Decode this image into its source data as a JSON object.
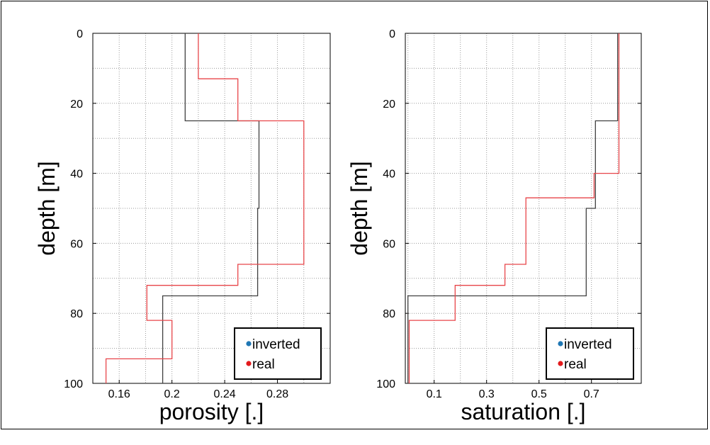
{
  "chart_data": [
    {
      "type": "line",
      "xlabel": "porosity [.]",
      "ylabel": "depth [m]",
      "xlim": [
        0.14,
        0.32
      ],
      "ylim": [
        0,
        100
      ],
      "y_inverted": true,
      "xticks": [
        0.16,
        0.2,
        0.24,
        0.28
      ],
      "xtick_labels": [
        "0.16",
        "0.2",
        "0.24",
        "0.28"
      ],
      "yticks": [
        0,
        20,
        40,
        60,
        80,
        100
      ],
      "ytick_labels": [
        "0",
        "20",
        "40",
        "60",
        "80",
        "100"
      ],
      "grid": true,
      "legend_position": "bottom-right",
      "legend": [
        {
          "label": "inverted",
          "marker_color": "#1f77b4"
        },
        {
          "label": "real",
          "marker_color": "#e31a1c"
        }
      ],
      "series": [
        {
          "name": "inverted",
          "color": "#404040",
          "points": [
            [
              0.21,
              0
            ],
            [
              0.21,
              25
            ],
            [
              0.266,
              25
            ],
            [
              0.266,
              50
            ],
            [
              0.265,
              50
            ],
            [
              0.265,
              75
            ],
            [
              0.193,
              75
            ],
            [
              0.193,
              100
            ]
          ]
        },
        {
          "name": "real",
          "color": "#e8464a",
          "points": [
            [
              0.22,
              0
            ],
            [
              0.22,
              13
            ],
            [
              0.25,
              13
            ],
            [
              0.25,
              25
            ],
            [
              0.3,
              25
            ],
            [
              0.3,
              66
            ],
            [
              0.25,
              66
            ],
            [
              0.25,
              72
            ],
            [
              0.181,
              72
            ],
            [
              0.181,
              82
            ],
            [
              0.2,
              82
            ],
            [
              0.2,
              93
            ],
            [
              0.15,
              93
            ],
            [
              0.15,
              100
            ]
          ]
        }
      ]
    },
    {
      "type": "line",
      "xlabel": "saturation [.]",
      "ylabel": "depth [m]",
      "xlim": [
        -0.01,
        0.89
      ],
      "ylim": [
        0,
        100
      ],
      "y_inverted": true,
      "xticks": [
        0.1,
        0.3,
        0.5,
        0.7
      ],
      "xtick_labels": [
        "0.1",
        "0.3",
        "0.5",
        "0.7"
      ],
      "yticks": [
        0,
        20,
        40,
        60,
        80,
        100
      ],
      "ytick_labels": [
        "0",
        "20",
        "40",
        "60",
        "80",
        "100"
      ],
      "grid": true,
      "legend_position": "bottom-right",
      "legend": [
        {
          "label": "inverted",
          "marker_color": "#1f77b4"
        },
        {
          "label": "real",
          "marker_color": "#e31a1c"
        }
      ],
      "series": [
        {
          "name": "inverted",
          "color": "#404040",
          "points": [
            [
              0.8,
              0
            ],
            [
              0.8,
              25
            ],
            [
              0.715,
              25
            ],
            [
              0.715,
              50
            ],
            [
              0.68,
              50
            ],
            [
              0.68,
              75
            ],
            [
              0.0,
              75
            ],
            [
              0.0,
              100
            ]
          ]
        },
        {
          "name": "real",
          "color": "#e8464a",
          "points": [
            [
              0.805,
              0
            ],
            [
              0.805,
              40
            ],
            [
              0.71,
              40
            ],
            [
              0.71,
              47
            ],
            [
              0.45,
              47
            ],
            [
              0.45,
              66
            ],
            [
              0.37,
              66
            ],
            [
              0.37,
              72
            ],
            [
              0.18,
              72
            ],
            [
              0.18,
              82
            ],
            [
              0.005,
              82
            ],
            [
              0.005,
              100
            ]
          ]
        }
      ]
    }
  ]
}
